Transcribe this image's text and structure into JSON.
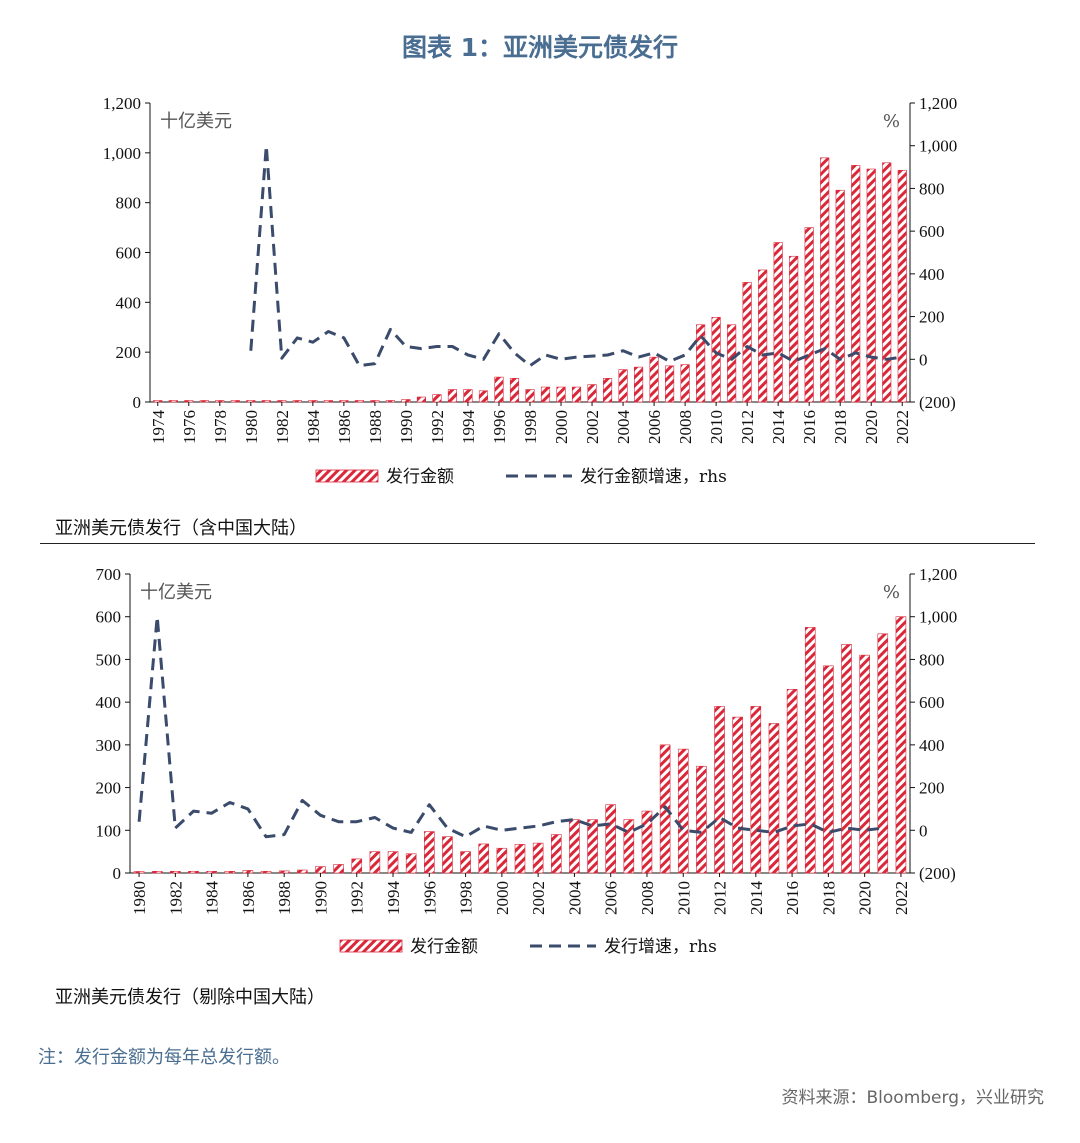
{
  "title": "图表 1：亚洲美元债发行",
  "note": "注：发行金额为每年总发行额。",
  "source": "资料来源：Bloomberg，兴业研究",
  "colors": {
    "bar": "#d9283a",
    "line": "#3a4b6b",
    "title": "#4a6e91",
    "negative_tick": "#d9283a"
  },
  "chart_data": [
    {
      "type": "bar",
      "caption": "亚洲美元债发行（含中国大陆）",
      "left_unit": "十亿美元",
      "right_unit": "%",
      "left_ticks": [
        "0",
        "200",
        "400",
        "600",
        "800",
        "1,000",
        "1,200"
      ],
      "right_ticks": [
        "(200)",
        "0",
        "200",
        "400",
        "600",
        "800",
        "1,000",
        "1,200"
      ],
      "ylim_left": [
        0,
        1200
      ],
      "ylim_right": [
        -200,
        1200
      ],
      "x_tick_labels": [
        "1974",
        "1976",
        "1978",
        "1980",
        "1982",
        "1984",
        "1986",
        "1988",
        "1990",
        "1992",
        "1994",
        "1996",
        "1998",
        "2000",
        "2002",
        "2004",
        "2006",
        "2008",
        "2010",
        "2012",
        "2014",
        "2016",
        "2018",
        "2020",
        "2022"
      ],
      "categories": [
        1974,
        1975,
        1976,
        1977,
        1978,
        1979,
        1980,
        1981,
        1982,
        1983,
        1984,
        1985,
        1986,
        1987,
        1988,
        1989,
        1990,
        1991,
        1992,
        1993,
        1994,
        1995,
        1996,
        1997,
        1998,
        1999,
        2000,
        2001,
        2002,
        2003,
        2004,
        2005,
        2006,
        2007,
        2008,
        2009,
        2010,
        2011,
        2012,
        2013,
        2014,
        2015,
        2016,
        2017,
        2018,
        2019,
        2020,
        2021,
        2022
      ],
      "series": [
        {
          "name": "发行金额",
          "kind": "bar",
          "axis": "left",
          "values": [
            3,
            0,
            0,
            0,
            0,
            0,
            2,
            3,
            3,
            4,
            4,
            4,
            5,
            4,
            5,
            6,
            10,
            20,
            30,
            50,
            50,
            45,
            100,
            95,
            50,
            60,
            60,
            60,
            70,
            95,
            130,
            140,
            180,
            145,
            150,
            310,
            340,
            310,
            480,
            530,
            640,
            585,
            700,
            980,
            850,
            950,
            935,
            960,
            930
          ]
        },
        {
          "name": "发行金额增速，rhs",
          "kind": "line",
          "axis": "right",
          "values": [
            null,
            null,
            null,
            null,
            null,
            null,
            40,
            1000,
            5,
            100,
            80,
            130,
            100,
            -30,
            -20,
            140,
            60,
            50,
            60,
            60,
            20,
            0,
            120,
            30,
            -30,
            20,
            0,
            10,
            15,
            20,
            40,
            10,
            30,
            -10,
            20,
            110,
            30,
            0,
            60,
            20,
            30,
            -10,
            20,
            50,
            0,
            30,
            10,
            0,
            10
          ]
        }
      ]
    },
    {
      "type": "bar",
      "caption": "亚洲美元债发行（剔除中国大陆）",
      "left_unit": "十亿美元",
      "right_unit": "%",
      "left_ticks": [
        "0",
        "100",
        "200",
        "300",
        "400",
        "500",
        "600",
        "700"
      ],
      "right_ticks": [
        "(200)",
        "0",
        "200",
        "400",
        "600",
        "800",
        "1,000",
        "1,200"
      ],
      "ylim_left": [
        0,
        700
      ],
      "ylim_right": [
        -200,
        1200
      ],
      "x_tick_labels": [
        "1980",
        "1982",
        "1984",
        "1986",
        "1988",
        "1990",
        "1992",
        "1994",
        "1996",
        "1998",
        "2000",
        "2002",
        "2004",
        "2006",
        "2008",
        "2010",
        "2012",
        "2014",
        "2016",
        "2018",
        "2020",
        "2022"
      ],
      "categories": [
        1980,
        1981,
        1982,
        1983,
        1984,
        1985,
        1986,
        1987,
        1988,
        1989,
        1990,
        1991,
        1992,
        1993,
        1994,
        1995,
        1996,
        1997,
        1998,
        1999,
        2000,
        2001,
        2002,
        2003,
        2004,
        2005,
        2006,
        2007,
        2008,
        2009,
        2010,
        2011,
        2012,
        2013,
        2014,
        2015,
        2016,
        2017,
        2018,
        2019,
        2020,
        2021,
        2022
      ],
      "series": [
        {
          "name": "发行金额",
          "kind": "bar",
          "axis": "left",
          "values": [
            3,
            4,
            4,
            4,
            4,
            4,
            6,
            4,
            5,
            7,
            15,
            20,
            33,
            50,
            50,
            45,
            97,
            85,
            50,
            68,
            58,
            67,
            70,
            90,
            125,
            125,
            160,
            125,
            145,
            300,
            290,
            250,
            390,
            365,
            390,
            350,
            430,
            575,
            485,
            535,
            510,
            560,
            600
          ]
        },
        {
          "name": "发行增速，rhs",
          "kind": "line",
          "axis": "right",
          "values": [
            40,
            1000,
            10,
            90,
            80,
            130,
            100,
            -30,
            -20,
            140,
            70,
            40,
            40,
            60,
            10,
            -10,
            120,
            10,
            -30,
            20,
            0,
            10,
            20,
            40,
            50,
            20,
            30,
            -10,
            30,
            110,
            0,
            -10,
            60,
            10,
            0,
            -10,
            20,
            30,
            -10,
            10,
            0,
            10,
            null
          ]
        }
      ]
    }
  ]
}
